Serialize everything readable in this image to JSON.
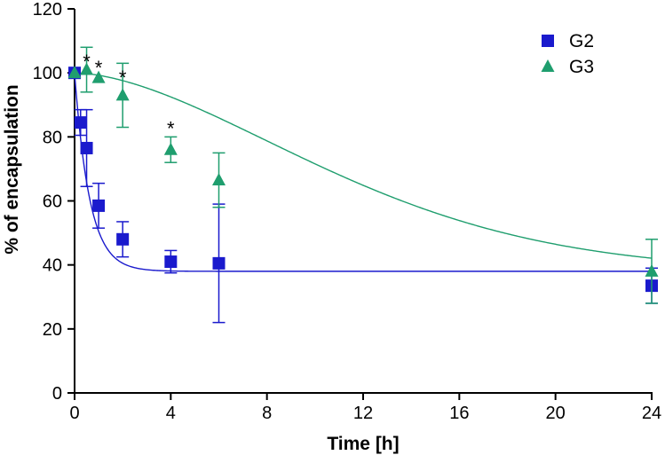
{
  "chart_data": {
    "type": "scatter",
    "title": "",
    "xlabel": "Time [h]",
    "ylabel": "% of encapsulation",
    "xlim": [
      0,
      24
    ],
    "ylim": [
      0,
      120
    ],
    "x_ticks": [
      "0",
      "4",
      "8",
      "12",
      "16",
      "20",
      "24"
    ],
    "y_ticks": [
      "0",
      "20",
      "40",
      "60",
      "80",
      "100",
      "120"
    ],
    "grid": false,
    "legend": "top-right",
    "series": [
      {
        "name": "G2",
        "color": "#1a1acd",
        "marker": "square",
        "x": [
          0,
          0.25,
          0.5,
          1,
          2,
          4,
          6,
          24
        ],
        "y": [
          100,
          84.5,
          76.5,
          58.5,
          48,
          41,
          40.5,
          33.5
        ],
        "err": [
          0,
          4,
          12,
          7,
          5.5,
          3.5,
          18.5,
          5.5
        ],
        "fit": {
          "model": "one-phase-decay",
          "y0": 100,
          "plateau": 38,
          "k": 1.6
        }
      },
      {
        "name": "G3",
        "color": "#1f9e6e",
        "marker": "triangle",
        "x": [
          0,
          0.5,
          1,
          2,
          4,
          6,
          24
        ],
        "y": [
          100,
          101,
          98.5,
          93,
          76,
          66.5,
          38
        ],
        "err": [
          0,
          7,
          0,
          10,
          4,
          8.5,
          10
        ],
        "fit": {
          "model": "sigmoidal-decay",
          "y0": 100,
          "plateau": 38,
          "k": 0.075,
          "n": 1.7
        }
      }
    ],
    "annotations": [
      {
        "text": "*",
        "x": 0.5,
        "y": 102
      },
      {
        "text": "*",
        "x": 1,
        "y": 100
      },
      {
        "text": "*",
        "x": 2,
        "y": 97
      },
      {
        "text": "*",
        "x": 4,
        "y": 81
      }
    ]
  }
}
